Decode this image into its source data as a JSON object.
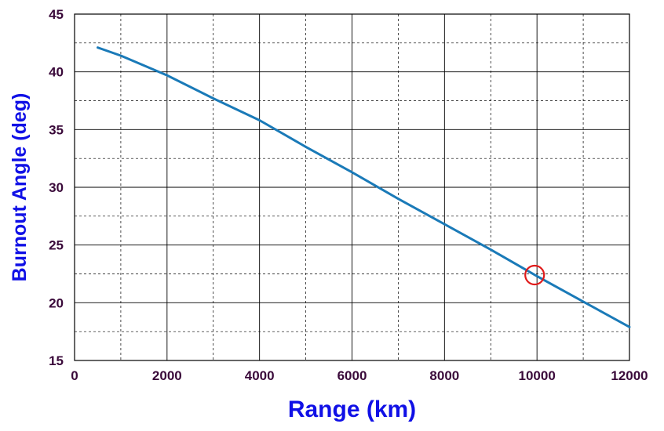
{
  "chart_data": {
    "type": "line",
    "title": "",
    "xlabel": "Range (km)",
    "ylabel": "Burnout Angle (deg)",
    "xlim": [
      0,
      12000
    ],
    "ylim": [
      15,
      45
    ],
    "x_ticks": [
      "0",
      "2000",
      "4000",
      "6000",
      "8000",
      "10000",
      "12000"
    ],
    "y_ticks": [
      "15",
      "20",
      "25",
      "30",
      "35",
      "40",
      "45"
    ],
    "grid": true,
    "grid_style": "solid major lines, dashed minor lines",
    "series": [
      {
        "x": [
          500,
          1000,
          2000,
          3000,
          4000,
          5000,
          6000,
          7000,
          8000,
          9000,
          10000,
          11000,
          12000
        ],
        "y": [
          42.1,
          41.4,
          39.7,
          37.7,
          35.8,
          33.5,
          31.3,
          29.0,
          26.8,
          24.6,
          22.3,
          20.1,
          17.9
        ],
        "color": "#1a7ab8"
      }
    ],
    "annotations": [
      {
        "type": "circle-marker",
        "x": 9950,
        "y": 22.4,
        "color": "#e01a1a"
      }
    ],
    "colors": {
      "axis_title": "#1010e6",
      "tick_label": "#3a0a3a",
      "grid": "#000000"
    }
  }
}
